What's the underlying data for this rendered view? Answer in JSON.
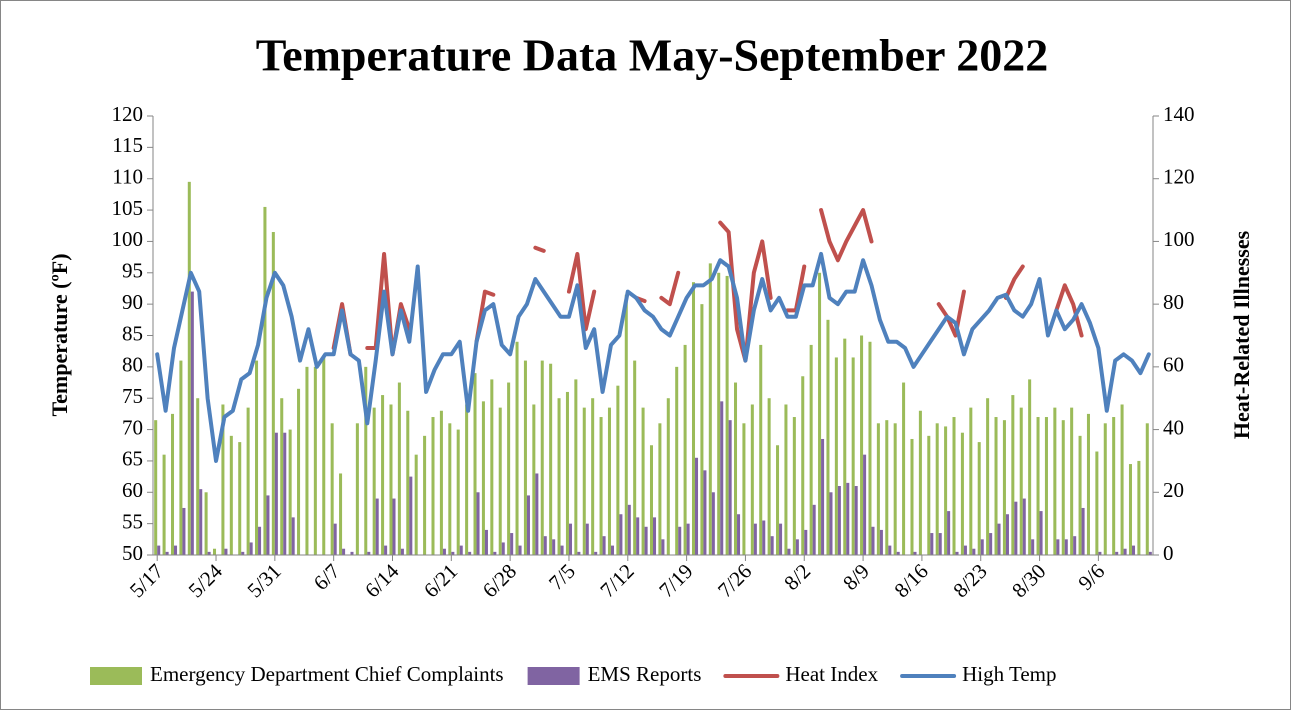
{
  "chart_data": {
    "type": "combo",
    "title": "Temperature Data May-September 2022",
    "y_label": "Temperature (ºF)",
    "y2_label": "Heat-Related Illnesses",
    "categories": [
      "5/17",
      null,
      null,
      null,
      null,
      null,
      null,
      "5/24",
      null,
      null,
      null,
      null,
      null,
      null,
      "5/31",
      null,
      null,
      null,
      null,
      null,
      null,
      "6/7",
      null,
      null,
      null,
      null,
      null,
      null,
      "6/14",
      null,
      null,
      null,
      null,
      null,
      null,
      "6/21",
      null,
      null,
      null,
      null,
      null,
      null,
      "6/28",
      null,
      null,
      null,
      null,
      null,
      null,
      "7/5",
      null,
      null,
      null,
      null,
      null,
      null,
      "7/12",
      null,
      null,
      null,
      null,
      null,
      null,
      "7/19",
      null,
      null,
      null,
      null,
      null,
      null,
      "7/26",
      null,
      null,
      null,
      null,
      null,
      null,
      "8/2",
      null,
      null,
      null,
      null,
      null,
      null,
      "8/9",
      null,
      null,
      null,
      null,
      null,
      null,
      "8/16",
      null,
      null,
      null,
      null,
      null,
      null,
      "8/23",
      null,
      null,
      null,
      null,
      null,
      null,
      "8/30",
      null,
      null,
      null,
      null,
      null,
      null,
      "9/6",
      null,
      null,
      null,
      null,
      null,
      null
    ],
    "series": [
      {
        "name": "Emergency Department Chief Complaints",
        "type": "bar",
        "axis": "y2",
        "color": "#9bbb59",
        "values": [
          43,
          32,
          45,
          62,
          119,
          50,
          20,
          2,
          48,
          38,
          36,
          47,
          62,
          111,
          103,
          50,
          40,
          53,
          60,
          60,
          63,
          42,
          26,
          0,
          42,
          60,
          47,
          51,
          48,
          55,
          46,
          32,
          38,
          44,
          46,
          42,
          40,
          48,
          58,
          49,
          56,
          47,
          55,
          68,
          62,
          48,
          62,
          61,
          50,
          52,
          56,
          47,
          50,
          44,
          47,
          54,
          83,
          62,
          47,
          35,
          42,
          50,
          60,
          67,
          87,
          80,
          93,
          90,
          89,
          55,
          42,
          48,
          67,
          50,
          35,
          48,
          44,
          57,
          67,
          90,
          75,
          63,
          69,
          63,
          70,
          68,
          42,
          43,
          42,
          55,
          37,
          46,
          38,
          42,
          41,
          44,
          39,
          47,
          36,
          50,
          44,
          43,
          51,
          47,
          56,
          44,
          44,
          47,
          43,
          47,
          38,
          45,
          33,
          42,
          44,
          48,
          29,
          30,
          42
        ]
      },
      {
        "name": "EMS Reports",
        "type": "bar",
        "axis": "y2",
        "color": "#8064a2",
        "values": [
          3,
          1,
          3,
          15,
          84,
          21,
          1,
          0,
          2,
          0,
          1,
          4,
          9,
          19,
          39,
          39,
          12,
          0,
          0,
          0,
          0,
          10,
          2,
          1,
          0,
          1,
          18,
          3,
          18,
          2,
          25,
          0,
          0,
          0,
          2,
          1,
          3,
          1,
          20,
          8,
          1,
          4,
          7,
          3,
          19,
          26,
          6,
          5,
          3,
          10,
          1,
          10,
          1,
          6,
          3,
          13,
          16,
          12,
          9,
          12,
          5,
          0,
          9,
          10,
          31,
          27,
          20,
          49,
          43,
          13,
          0,
          10,
          11,
          6,
          10,
          2,
          5,
          8,
          16,
          37,
          20,
          22,
          23,
          22,
          32,
          9,
          8,
          3,
          1,
          0,
          1,
          0,
          7,
          7,
          14,
          1,
          3,
          2,
          5,
          7,
          10,
          13,
          17,
          18,
          5,
          14,
          0,
          5,
          5,
          6,
          15,
          0,
          1,
          0,
          1,
          2,
          3,
          0,
          1
        ]
      },
      {
        "name": "Heat Index",
        "type": "line",
        "color": "#c0504d",
        "values": [
          null,
          null,
          null,
          null,
          null,
          null,
          null,
          null,
          null,
          null,
          null,
          null,
          null,
          null,
          null,
          null,
          null,
          null,
          null,
          null,
          null,
          83,
          90,
          82,
          null,
          83,
          83,
          98,
          82,
          90,
          86,
          null,
          null,
          null,
          null,
          null,
          null,
          null,
          84,
          92,
          91.5,
          null,
          null,
          null,
          null,
          99,
          98.5,
          null,
          null,
          92,
          98,
          86,
          92,
          null,
          null,
          null,
          null,
          91,
          90.5,
          null,
          91,
          90,
          95,
          null,
          null,
          null,
          null,
          103,
          101.5,
          86,
          81,
          95,
          100,
          91,
          null,
          89,
          89,
          96,
          null,
          105,
          100,
          97,
          100,
          102.5,
          105,
          100,
          null,
          null,
          null,
          null,
          null,
          null,
          null,
          90,
          88,
          85,
          92,
          null,
          null,
          null,
          null,
          91,
          94,
          96,
          null,
          null,
          null,
          89,
          93,
          90,
          85,
          null,
          null,
          null,
          null,
          null,
          null,
          null,
          null
        ]
      },
      {
        "name": "High Temp",
        "type": "line",
        "color": "#4f81bd",
        "values": [
          82,
          73,
          83,
          89,
          95,
          92,
          75,
          65,
          72,
          73,
          78,
          79,
          83.5,
          91,
          95,
          93,
          88,
          81,
          86,
          80,
          82,
          82,
          89,
          82,
          81,
          71,
          81,
          92,
          82,
          89,
          84,
          96,
          76,
          79.5,
          82,
          82,
          84,
          73,
          84,
          89,
          90,
          83.5,
          82,
          88,
          90,
          94,
          92,
          90,
          88,
          88,
          93,
          83,
          86,
          76,
          83.5,
          85,
          92,
          91,
          89,
          88,
          86,
          85,
          88,
          91,
          93,
          93,
          94,
          97,
          96,
          91,
          81,
          89,
          94,
          89,
          91,
          88,
          88,
          93,
          93,
          98,
          91,
          90,
          92,
          92,
          97,
          93,
          87.5,
          84,
          84,
          83,
          80,
          82,
          84,
          86,
          88,
          87,
          82,
          86,
          87.5,
          89,
          91,
          91.5,
          89,
          88,
          90,
          94,
          85,
          89,
          86,
          87.5,
          90,
          87,
          83,
          73,
          81,
          82,
          81,
          79,
          82
        ]
      }
    ],
    "ylim": [
      50,
      120
    ],
    "yticks": [
      50,
      55,
      60,
      65,
      70,
      75,
      80,
      85,
      90,
      95,
      100,
      105,
      110,
      115,
      120
    ],
    "y2lim": [
      0,
      140
    ],
    "y2ticks": [
      0,
      20,
      40,
      60,
      80,
      100,
      120,
      140
    ],
    "legend": "bottom"
  }
}
